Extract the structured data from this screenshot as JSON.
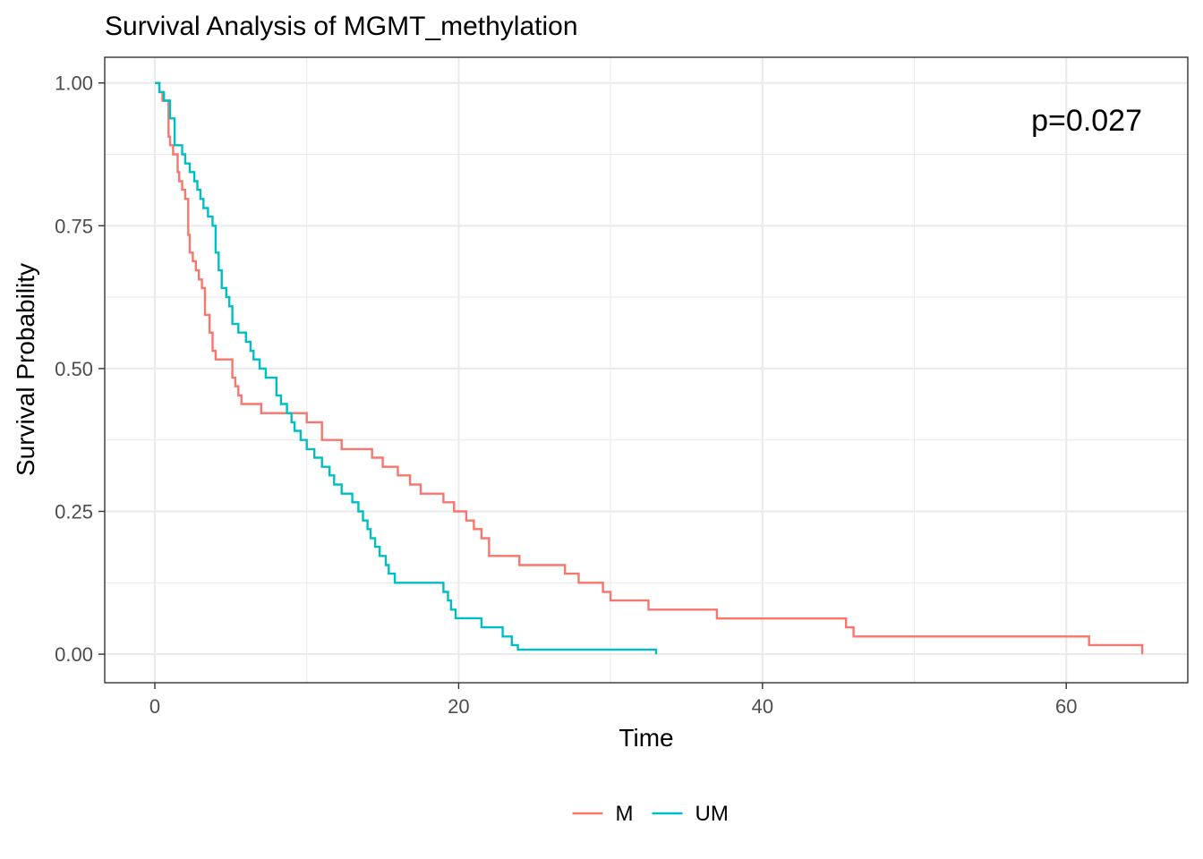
{
  "chart_data": {
    "type": "line",
    "title": "Survival Analysis of MGMT_methylation",
    "xlabel": "Time",
    "ylabel": "Survival Probability",
    "xlim": [
      -3.3,
      68.0
    ],
    "ylim": [
      -0.05,
      1.045
    ],
    "x_ticks": [
      0,
      20,
      40,
      60
    ],
    "x_tick_labels": [
      "0",
      "20",
      "40",
      "60"
    ],
    "y_ticks": [
      0,
      0.25,
      0.5,
      0.75,
      1.0
    ],
    "y_tick_labels": [
      "0.00",
      "0.25",
      "0.50",
      "0.75",
      "1.00"
    ],
    "grid": true,
    "legend_position": "bottom",
    "annotation": "p=0.027",
    "series": [
      {
        "name": "M",
        "color": "#F8766D",
        "x": [
          0,
          0.3,
          0.5,
          0.9,
          1.0,
          1.2,
          1.5,
          1.6,
          1.8,
          2.0,
          2.2,
          2.3,
          2.5,
          2.7,
          2.9,
          3.1,
          3.3,
          3.6,
          3.8,
          4.0,
          4.2,
          4.5,
          4.7,
          5.1,
          5.3,
          5.5,
          5.7,
          6.3,
          7.0,
          8.0,
          9.0,
          10.0,
          11.0,
          12.3,
          14.3,
          15.0,
          16.0,
          16.8,
          17.5,
          19.0,
          19.7,
          20.5,
          21.0,
          21.5,
          22.0,
          24.0,
          27.0,
          27.9,
          29.5,
          30.0,
          32.5,
          37.0,
          45.5,
          46.0,
          61.5,
          65.0
        ],
        "y": [
          1.0,
          0.984,
          0.969,
          0.906,
          0.891,
          0.875,
          0.844,
          0.828,
          0.813,
          0.797,
          0.734,
          0.703,
          0.688,
          0.672,
          0.656,
          0.641,
          0.594,
          0.563,
          0.531,
          0.516,
          0.516,
          0.516,
          0.516,
          0.484,
          0.469,
          0.453,
          0.438,
          0.438,
          0.422,
          0.422,
          0.422,
          0.406,
          0.375,
          0.359,
          0.344,
          0.328,
          0.313,
          0.297,
          0.281,
          0.266,
          0.25,
          0.234,
          0.219,
          0.203,
          0.172,
          0.156,
          0.141,
          0.125,
          0.109,
          0.094,
          0.078,
          0.0625,
          0.047,
          0.031,
          0.016,
          0.0
        ]
      },
      {
        "name": "UM",
        "color": "#00BFC4",
        "x": [
          0,
          0.3,
          0.6,
          1.0,
          1.3,
          1.8,
          2.0,
          2.3,
          2.6,
          2.8,
          3.0,
          3.2,
          3.5,
          3.8,
          4.0,
          4.2,
          4.4,
          4.7,
          4.9,
          5.1,
          5.5,
          6.0,
          6.3,
          6.5,
          6.9,
          7.3,
          8.0,
          8.3,
          8.7,
          9.0,
          9.2,
          9.6,
          10.0,
          10.5,
          11.0,
          11.5,
          11.8,
          12.3,
          13.0,
          13.4,
          13.7,
          14.0,
          14.2,
          14.5,
          14.8,
          15.2,
          15.4,
          15.8,
          16.6,
          19.0,
          19.3,
          19.5,
          19.8,
          20.2,
          21.5,
          22.9,
          23.5,
          23.9,
          24.3,
          25.2,
          33.0
        ],
        "y": [
          1.0,
          0.984,
          0.969,
          0.938,
          0.891,
          0.875,
          0.859,
          0.844,
          0.828,
          0.813,
          0.797,
          0.781,
          0.766,
          0.75,
          0.703,
          0.672,
          0.641,
          0.625,
          0.609,
          0.578,
          0.563,
          0.547,
          0.531,
          0.516,
          0.5,
          0.484,
          0.453,
          0.438,
          0.422,
          0.406,
          0.391,
          0.375,
          0.359,
          0.344,
          0.328,
          0.313,
          0.297,
          0.281,
          0.266,
          0.25,
          0.234,
          0.219,
          0.203,
          0.188,
          0.172,
          0.156,
          0.141,
          0.125,
          0.125,
          0.109,
          0.094,
          0.078,
          0.063,
          0.063,
          0.047,
          0.031,
          0.016,
          0.0078,
          0.0078,
          0.0078,
          0.0
        ]
      }
    ]
  }
}
